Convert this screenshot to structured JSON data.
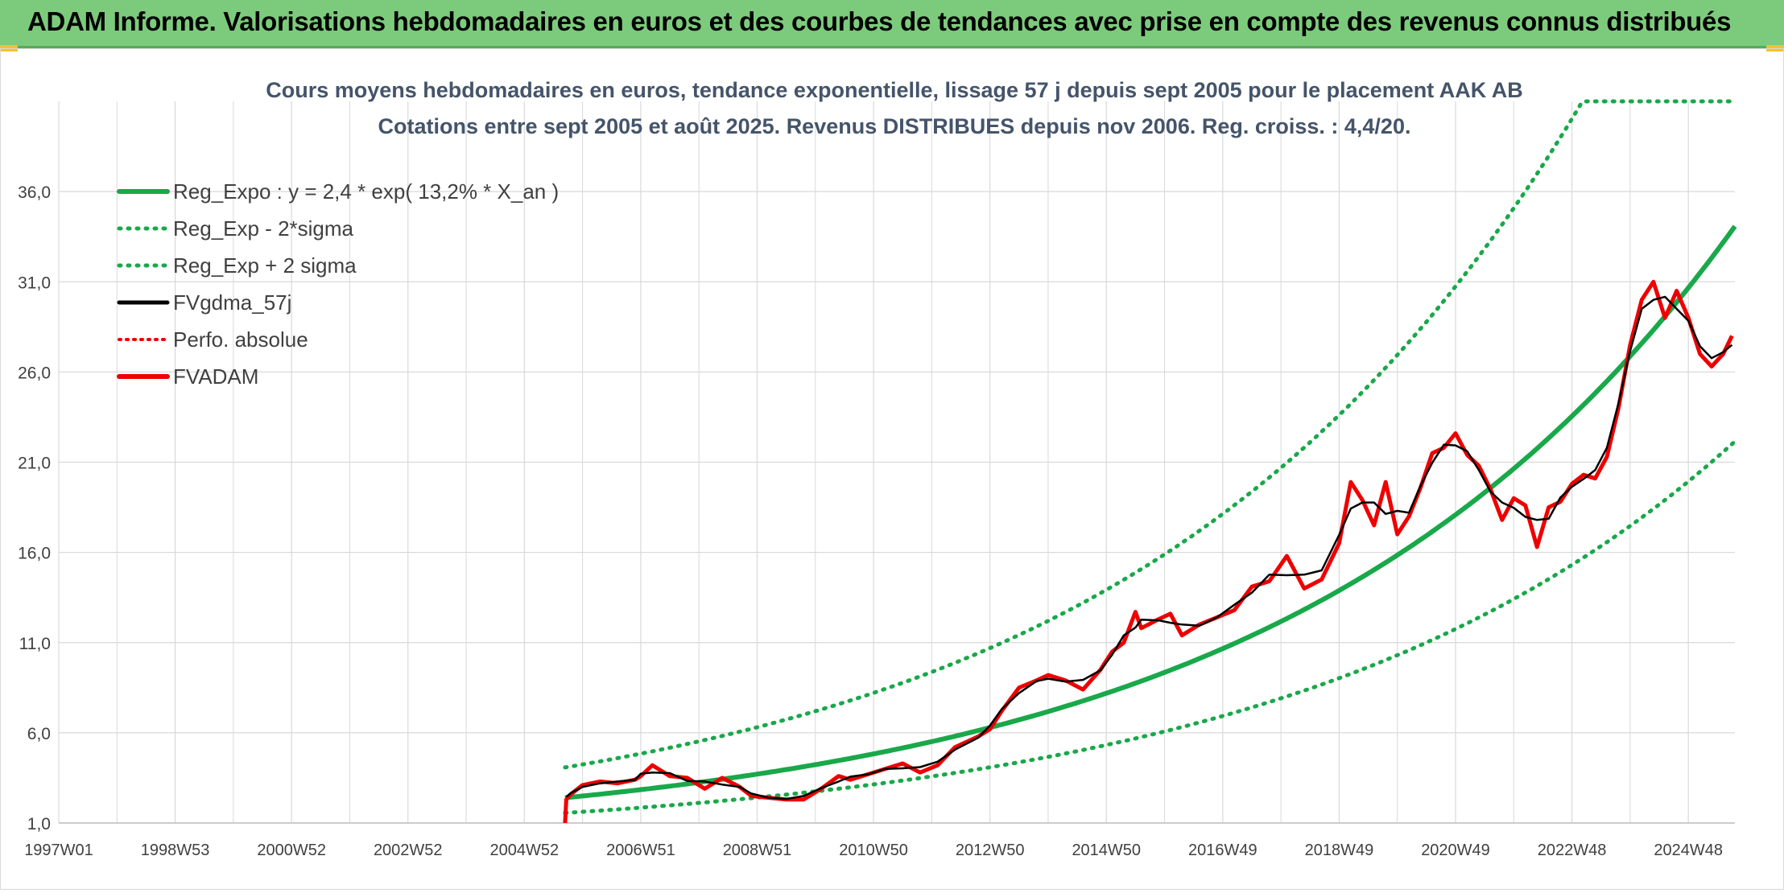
{
  "header": {
    "title": "ADAM Informe. Valorisations hebdomadaires en euros et des courbes de tendances avec prise en compte des revenus connus distribués"
  },
  "colors": {
    "header_bg": "#7ccb7c",
    "reg_green": "#19a84a",
    "black": "#000000",
    "red": "#ee0000",
    "grid": "#d9d9d9",
    "title_text": "#44546a"
  },
  "chart_data": {
    "type": "line",
    "title": "Cours moyens hebdomadaires en euros, tendance exponentielle, lissage 57 j depuis sept 2005 pour le placement AAK AB",
    "subtitle": "Cotations entre sept 2005 et août 2025. Revenus DISTRIBUES depuis nov 2006. Reg. croiss. : 4,4/20.",
    "xlabel": "",
    "ylabel": "",
    "x_ticks": [
      "1997W01",
      "1998W53",
      "2000W52",
      "2002W52",
      "2004W52",
      "2006W51",
      "2008W51",
      "2010W50",
      "2012W50",
      "2014W50",
      "2016W49",
      "2018W49",
      "2020W49",
      "2022W48",
      "2024W48"
    ],
    "x_range": [
      1997.0,
      2025.8
    ],
    "y_ticks": [
      "1,0",
      "6,0",
      "11,0",
      "16,0",
      "21,0",
      "26,0",
      "31,0",
      "36,0"
    ],
    "ylim": [
      1,
      41
    ],
    "grid": true,
    "legend_position": "top-left",
    "regression": {
      "a": 2.4,
      "rate": 0.132,
      "x0": 2005.7,
      "sigma_factor": 0.7
    },
    "series": [
      {
        "name": "Reg_Expo : y = 2,4 * exp( 13,2% *  X_an )",
        "style": "solid-green"
      },
      {
        "name": "Reg_Exp - 2*sigma",
        "style": "dotted-green"
      },
      {
        "name": "Reg_Exp + 2 sigma",
        "style": "dotted-green"
      },
      {
        "name": "FVgdma_57j",
        "style": "solid-black"
      },
      {
        "name": "Perfo. absolue",
        "style": "dotted-red"
      },
      {
        "name": "FVADAM",
        "style": "solid-red",
        "x": [
          2005.7,
          2005.72,
          2005.8,
          2006.0,
          2006.3,
          2006.6,
          2006.9,
          2007.0,
          2007.2,
          2007.5,
          2007.8,
          2008.1,
          2008.4,
          2008.7,
          2008.9,
          2009.2,
          2009.5,
          2009.8,
          2010.1,
          2010.4,
          2010.6,
          2010.9,
          2011.2,
          2011.5,
          2011.8,
          2012.1,
          2012.4,
          2012.8,
          2013.0,
          2013.2,
          2013.5,
          2013.8,
          2014.0,
          2014.3,
          2014.6,
          2014.9,
          2015.1,
          2015.3,
          2015.5,
          2015.6,
          2015.9,
          2016.1,
          2016.3,
          2016.6,
          2016.9,
          2017.2,
          2017.5,
          2017.8,
          2018.1,
          2018.4,
          2018.7,
          2019.0,
          2019.2,
          2019.4,
          2019.6,
          2019.8,
          2020.0,
          2020.2,
          2020.4,
          2020.6,
          2020.8,
          2021.0,
          2021.2,
          2021.4,
          2021.6,
          2021.8,
          2022.0,
          2022.2,
          2022.4,
          2022.6,
          2022.8,
          2023.0,
          2023.2,
          2023.4,
          2023.6,
          2023.8,
          2024.0,
          2024.2,
          2024.4,
          2024.6,
          2024.8,
          2025.0,
          2025.2,
          2025.4,
          2025.6,
          2025.75
        ],
        "y": [
          1.0,
          2.3,
          2.6,
          3.1,
          3.3,
          3.2,
          3.4,
          3.6,
          4.2,
          3.6,
          3.5,
          2.9,
          3.5,
          3.0,
          2.5,
          2.4,
          2.3,
          2.3,
          2.9,
          3.6,
          3.4,
          3.7,
          4.0,
          4.3,
          3.8,
          4.2,
          5.2,
          5.8,
          6.2,
          7.2,
          8.5,
          8.9,
          9.2,
          8.9,
          8.4,
          9.5,
          10.5,
          11.0,
          12.7,
          11.8,
          12.3,
          12.6,
          11.4,
          12.0,
          12.4,
          12.8,
          14.1,
          14.4,
          15.8,
          14.0,
          14.5,
          16.5,
          19.9,
          18.9,
          17.5,
          19.9,
          17.0,
          18.0,
          19.6,
          21.5,
          21.8,
          22.6,
          21.4,
          20.8,
          19.5,
          17.8,
          19.0,
          18.6,
          16.3,
          18.5,
          18.8,
          19.8,
          20.3,
          20.1,
          21.3,
          24.0,
          27.5,
          30.0,
          31.0,
          29.0,
          30.5,
          29.0,
          27.0,
          26.3,
          27.0,
          28.0
        ]
      }
    ]
  }
}
